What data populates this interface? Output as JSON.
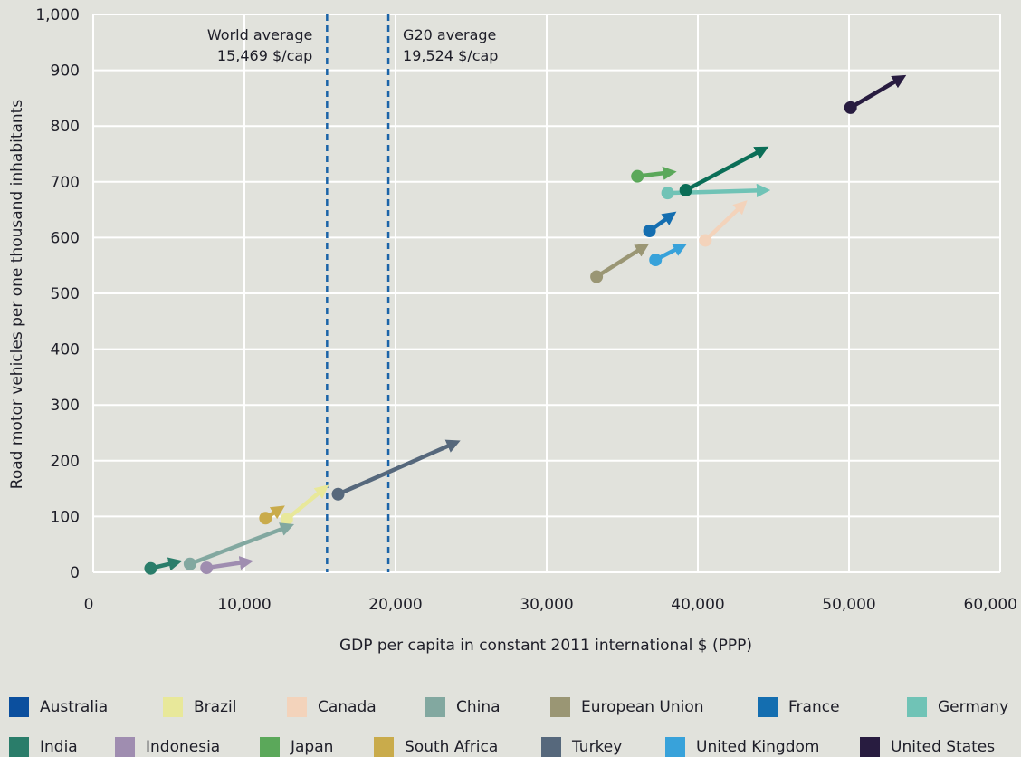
{
  "chart_data": {
    "type": "scatter",
    "xlabel": "GDP per capita in constant 2011 international $ (PPP)",
    "ylabel": "Road motor vehicles per one thousand inhabitants",
    "xlim": [
      0,
      60000
    ],
    "ylim": [
      0,
      1000
    ],
    "x_ticks": [
      "0",
      "10,000",
      "20,000",
      "30,000",
      "40,000",
      "50,000",
      "60,000"
    ],
    "y_ticks": [
      "0",
      "100",
      "200",
      "300",
      "400",
      "500",
      "600",
      "700",
      "800",
      "900",
      "1,000"
    ],
    "grid": true,
    "legend_position": "bottom",
    "reference_lines": [
      {
        "x": 15469,
        "label_1": "World average",
        "label_2": "15,469 $/cap",
        "label_side": "left"
      },
      {
        "x": 19524,
        "label_1": "G20 average",
        "label_2": "19,524 $/cap",
        "label_side": "right"
      }
    ],
    "series": [
      {
        "name": "Australia",
        "color": "#0b4f9e"
      },
      {
        "name": "Brazil",
        "color": "#e8e89a",
        "start": [
          12800,
          95
        ],
        "end": [
          15500,
          155
        ]
      },
      {
        "name": "Canada",
        "color": "#f3d3bb",
        "start": [
          40500,
          595
        ],
        "end": [
          43200,
          665
        ]
      },
      {
        "name": "China",
        "color": "#82a8a0",
        "start": [
          6400,
          15
        ],
        "end": [
          13200,
          85
        ]
      },
      {
        "name": "European Union",
        "color": "#9a9674",
        "start": [
          33300,
          530
        ],
        "end": [
          36700,
          588
        ]
      },
      {
        "name": "France",
        "color": "#146eb0",
        "start": [
          36800,
          612
        ],
        "end": [
          38500,
          645
        ]
      },
      {
        "name": "Germany",
        "color": "#70c3b6",
        "start": [
          38000,
          680
        ],
        "end": [
          44700,
          685
        ]
      },
      {
        "name": "India",
        "color": "#2a7d6a",
        "start": [
          3800,
          7
        ],
        "end": [
          5800,
          20
        ]
      },
      {
        "name": "Indonesia",
        "color": "#9f8db0",
        "start": [
          7500,
          8
        ],
        "end": [
          10500,
          20
        ]
      },
      {
        "name": "Japan",
        "color": "#5ba85a",
        "start": [
          36000,
          710
        ],
        "end": [
          38500,
          718
        ]
      },
      {
        "name": "South Africa",
        "color": "#c9ab4b",
        "start": [
          11400,
          97
        ],
        "end": [
          12600,
          118
        ]
      },
      {
        "name": "Turkey",
        "color": "#56687c",
        "start": [
          16200,
          140
        ],
        "end": [
          24200,
          235
        ]
      },
      {
        "name": "United Kingdom",
        "color": "#38a2da",
        "start": [
          37200,
          560
        ],
        "end": [
          39200,
          588
        ]
      },
      {
        "name": "United States",
        "color": "#281c40",
        "start": [
          50100,
          833
        ],
        "end": [
          53700,
          890
        ]
      },
      {
        "name": "",
        "color": "#0b6e57",
        "start": [
          39200,
          685
        ],
        "end": [
          44600,
          762
        ]
      }
    ]
  }
}
